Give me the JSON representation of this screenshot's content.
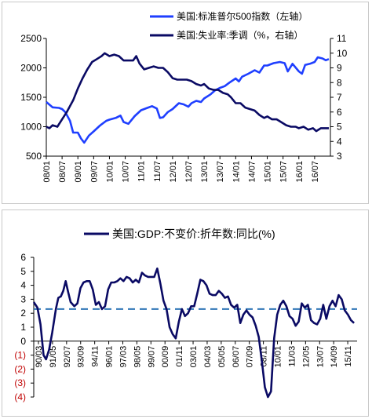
{
  "chart_data": [
    {
      "type": "line",
      "legend_position": "top",
      "grid": false,
      "series": [
        {
          "name": "美国:标准普尔500指数（左轴）",
          "axis": "left",
          "color": "#1f3fff",
          "points": [
            [
              2008.0,
              1420
            ],
            [
              2008.2,
              1330
            ],
            [
              2008.4,
              1320
            ],
            [
              2008.5,
              1300
            ],
            [
              2008.6,
              1250
            ],
            [
              2008.75,
              1100
            ],
            [
              2008.85,
              900
            ],
            [
              2009.0,
              900
            ],
            [
              2009.1,
              800
            ],
            [
              2009.2,
              730
            ],
            [
              2009.35,
              850
            ],
            [
              2009.5,
              920
            ],
            [
              2009.7,
              1020
            ],
            [
              2009.9,
              1100
            ],
            [
              2010.0,
              1120
            ],
            [
              2010.2,
              1150
            ],
            [
              2010.35,
              1190
            ],
            [
              2010.45,
              1080
            ],
            [
              2010.6,
              1050
            ],
            [
              2010.8,
              1180
            ],
            [
              2011.0,
              1280
            ],
            [
              2011.2,
              1320
            ],
            [
              2011.35,
              1350
            ],
            [
              2011.5,
              1310
            ],
            [
              2011.6,
              1150
            ],
            [
              2011.7,
              1160
            ],
            [
              2011.85,
              1250
            ],
            [
              2012.0,
              1300
            ],
            [
              2012.2,
              1400
            ],
            [
              2012.35,
              1380
            ],
            [
              2012.5,
              1340
            ],
            [
              2012.6,
              1400
            ],
            [
              2012.75,
              1440
            ],
            [
              2012.9,
              1420
            ],
            [
              2013.0,
              1480
            ],
            [
              2013.2,
              1550
            ],
            [
              2013.35,
              1620
            ],
            [
              2013.5,
              1660
            ],
            [
              2013.65,
              1690
            ],
            [
              2013.8,
              1750
            ],
            [
              2014.0,
              1820
            ],
            [
              2014.1,
              1770
            ],
            [
              2014.2,
              1850
            ],
            [
              2014.4,
              1900
            ],
            [
              2014.6,
              1960
            ],
            [
              2014.75,
              1920
            ],
            [
              2014.9,
              2040
            ],
            [
              2015.0,
              2040
            ],
            [
              2015.2,
              2080
            ],
            [
              2015.4,
              2100
            ],
            [
              2015.55,
              2080
            ],
            [
              2015.65,
              1940
            ],
            [
              2015.8,
              2070
            ],
            [
              2016.0,
              1940
            ],
            [
              2016.1,
              1900
            ],
            [
              2016.2,
              2050
            ],
            [
              2016.35,
              2070
            ],
            [
              2016.5,
              2100
            ],
            [
              2016.6,
              2180
            ],
            [
              2016.75,
              2160
            ],
            [
              2016.85,
              2130
            ],
            [
              2016.95,
              2150
            ]
          ]
        },
        {
          "name": "美国:失业率:季调（%，右轴）",
          "axis": "right",
          "color": "#0a0a64",
          "points": [
            [
              2008.0,
              5.0
            ],
            [
              2008.1,
              4.9
            ],
            [
              2008.2,
              5.1
            ],
            [
              2008.35,
              5.0
            ],
            [
              2008.5,
              5.5
            ],
            [
              2008.65,
              6.0
            ],
            [
              2008.85,
              6.8
            ],
            [
              2009.0,
              7.6
            ],
            [
              2009.15,
              8.3
            ],
            [
              2009.3,
              8.9
            ],
            [
              2009.45,
              9.4
            ],
            [
              2009.6,
              9.6
            ],
            [
              2009.75,
              9.8
            ],
            [
              2009.85,
              10.0
            ],
            [
              2010.0,
              9.8
            ],
            [
              2010.15,
              9.9
            ],
            [
              2010.3,
              9.8
            ],
            [
              2010.45,
              9.5
            ],
            [
              2010.6,
              9.5
            ],
            [
              2010.75,
              9.5
            ],
            [
              2010.85,
              9.8
            ],
            [
              2010.95,
              9.3
            ],
            [
              2011.1,
              8.9
            ],
            [
              2011.25,
              9.0
            ],
            [
              2011.4,
              9.1
            ],
            [
              2011.55,
              9.0
            ],
            [
              2011.7,
              9.0
            ],
            [
              2011.85,
              8.7
            ],
            [
              2012.0,
              8.3
            ],
            [
              2012.15,
              8.2
            ],
            [
              2012.3,
              8.2
            ],
            [
              2012.45,
              8.2
            ],
            [
              2012.6,
              8.1
            ],
            [
              2012.75,
              7.9
            ],
            [
              2012.9,
              7.8
            ],
            [
              2013.0,
              7.9
            ],
            [
              2013.15,
              7.6
            ],
            [
              2013.3,
              7.5
            ],
            [
              2013.45,
              7.5
            ],
            [
              2013.6,
              7.3
            ],
            [
              2013.75,
              7.2
            ],
            [
              2013.85,
              7.0
            ],
            [
              2014.0,
              6.6
            ],
            [
              2014.15,
              6.6
            ],
            [
              2014.3,
              6.3
            ],
            [
              2014.45,
              6.2
            ],
            [
              2014.6,
              6.1
            ],
            [
              2014.75,
              5.8
            ],
            [
              2014.9,
              5.6
            ],
            [
              2015.0,
              5.7
            ],
            [
              2015.15,
              5.5
            ],
            [
              2015.3,
              5.5
            ],
            [
              2015.45,
              5.3
            ],
            [
              2015.6,
              5.1
            ],
            [
              2015.75,
              5.0
            ],
            [
              2015.9,
              5.0
            ],
            [
              2016.0,
              4.9
            ],
            [
              2016.15,
              5.0
            ],
            [
              2016.3,
              4.8
            ],
            [
              2016.45,
              4.9
            ],
            [
              2016.55,
              4.7
            ],
            [
              2016.7,
              4.9
            ],
            [
              2016.8,
              4.9
            ],
            [
              2016.95,
              4.9
            ]
          ]
        }
      ],
      "x_ticks": [
        "08/01",
        "08/07",
        "09/01",
        "09/07",
        "10/01",
        "10/07",
        "11/01",
        "11/07",
        "12/01",
        "12/07",
        "13/01",
        "13/07",
        "14/01",
        "14/07",
        "15/01",
        "15/07",
        "16/01",
        "16/07"
      ],
      "y_left": {
        "min": 500,
        "max": 2500,
        "ticks": [
          "500",
          "1000",
          "1500",
          "2000",
          "2500"
        ]
      },
      "y_right": {
        "min": 3,
        "max": 11,
        "ticks": [
          "3",
          "4",
          "5",
          "6",
          "7",
          "8",
          "9",
          "10",
          "11"
        ]
      }
    },
    {
      "type": "line",
      "legend_position": "top",
      "grid": false,
      "series": [
        {
          "name": "美国:GDP:不变价:折年数:同比(%)",
          "color": "#0a0a64",
          "points": [
            [
              1990.2,
              2.8
            ],
            [
              1990.5,
              2.4
            ],
            [
              1990.75,
              1.2
            ],
            [
              1991.0,
              -1.0
            ],
            [
              1991.2,
              -1.3
            ],
            [
              1991.45,
              -0.6
            ],
            [
              1991.7,
              0.6
            ],
            [
              1992.0,
              2.3
            ],
            [
              1992.2,
              3.1
            ],
            [
              1992.4,
              3.2
            ],
            [
              1992.6,
              3.6
            ],
            [
              1992.8,
              4.3
            ],
            [
              1993.0,
              3.5
            ],
            [
              1993.2,
              2.8
            ],
            [
              1993.5,
              2.5
            ],
            [
              1993.75,
              2.7
            ],
            [
              1994.0,
              3.8
            ],
            [
              1994.25,
              4.2
            ],
            [
              1994.5,
              4.3
            ],
            [
              1994.75,
              4.3
            ],
            [
              1995.0,
              3.7
            ],
            [
              1995.25,
              2.6
            ],
            [
              1995.5,
              2.8
            ],
            [
              1995.75,
              2.3
            ],
            [
              1996.0,
              2.5
            ],
            [
              1996.25,
              3.7
            ],
            [
              1996.5,
              4.2
            ],
            [
              1996.75,
              4.2
            ],
            [
              1997.0,
              4.3
            ],
            [
              1997.25,
              4.5
            ],
            [
              1997.5,
              4.3
            ],
            [
              1997.75,
              4.6
            ],
            [
              1998.0,
              4.5
            ],
            [
              1998.25,
              4.2
            ],
            [
              1998.5,
              4.4
            ],
            [
              1998.75,
              4.2
            ],
            [
              1999.0,
              4.9
            ],
            [
              1999.25,
              4.7
            ],
            [
              1999.5,
              4.6
            ],
            [
              1999.75,
              4.6
            ],
            [
              2000.0,
              4.6
            ],
            [
              2000.25,
              5.2
            ],
            [
              2000.5,
              4.1
            ],
            [
              2000.75,
              2.9
            ],
            [
              2001.0,
              2.3
            ],
            [
              2001.25,
              1.0
            ],
            [
              2001.5,
              0.5
            ],
            [
              2001.75,
              0.2
            ],
            [
              2002.0,
              1.4
            ],
            [
              2002.25,
              2.3
            ],
            [
              2002.5,
              1.8
            ],
            [
              2002.75,
              2.0
            ],
            [
              2003.0,
              2.5
            ],
            [
              2003.25,
              2.5
            ],
            [
              2003.5,
              3.4
            ],
            [
              2003.75,
              4.4
            ],
            [
              2004.0,
              4.3
            ],
            [
              2004.25,
              4.0
            ],
            [
              2004.5,
              3.4
            ],
            [
              2004.75,
              3.3
            ],
            [
              2005.0,
              3.3
            ],
            [
              2005.25,
              3.6
            ],
            [
              2005.5,
              3.4
            ],
            [
              2005.75,
              3.1
            ],
            [
              2006.0,
              3.2
            ],
            [
              2006.25,
              2.6
            ],
            [
              2006.5,
              2.4
            ],
            [
              2006.75,
              2.6
            ],
            [
              2007.0,
              1.3
            ],
            [
              2007.25,
              1.9
            ],
            [
              2007.5,
              2.2
            ],
            [
              2007.75,
              1.9
            ],
            [
              2008.0,
              1.7
            ],
            [
              2008.25,
              1.1
            ],
            [
              2008.5,
              0.3
            ],
            [
              2008.75,
              -1.4
            ],
            [
              2009.0,
              -3.3
            ],
            [
              2009.25,
              -4.0
            ],
            [
              2009.5,
              -3.6
            ],
            [
              2009.75,
              0.2
            ],
            [
              2010.0,
              1.9
            ],
            [
              2010.25,
              2.6
            ],
            [
              2010.5,
              2.9
            ],
            [
              2010.75,
              2.5
            ],
            [
              2011.0,
              1.8
            ],
            [
              2011.25,
              1.6
            ],
            [
              2011.5,
              1.1
            ],
            [
              2011.75,
              1.4
            ],
            [
              2012.0,
              2.7
            ],
            [
              2012.25,
              2.4
            ],
            [
              2012.5,
              2.6
            ],
            [
              2012.75,
              1.5
            ],
            [
              2013.0,
              1.3
            ],
            [
              2013.25,
              1.2
            ],
            [
              2013.5,
              1.6
            ],
            [
              2013.75,
              2.6
            ],
            [
              2014.0,
              1.6
            ],
            [
              2014.25,
              2.5
            ],
            [
              2014.5,
              2.9
            ],
            [
              2014.75,
              2.5
            ],
            [
              2015.0,
              3.3
            ],
            [
              2015.25,
              3.0
            ],
            [
              2015.5,
              2.2
            ],
            [
              2015.75,
              1.9
            ],
            [
              2016.0,
              1.5
            ],
            [
              2016.25,
              1.3
            ]
          ]
        }
      ],
      "reference_line": {
        "value": 2.3,
        "style": "dashed",
        "color": "#2e75b6"
      },
      "x_ticks": [
        "90/03",
        "91/05",
        "92/07",
        "93/09",
        "94/11",
        "96/01",
        "97/03",
        "98/05",
        "99/07",
        "00/09",
        "01/11",
        "03/01",
        "04/03",
        "05/05",
        "06/07",
        "07/09",
        "08/11",
        "10/01",
        "11/03",
        "12/05",
        "13/07",
        "14/09",
        "15/11"
      ],
      "y": {
        "min": -4,
        "max": 6,
        "ticks": [
          "6",
          "5",
          "4",
          "3",
          "2",
          "1",
          "0",
          "(1)",
          "(2)",
          "(3)",
          "(4)"
        ]
      }
    }
  ]
}
